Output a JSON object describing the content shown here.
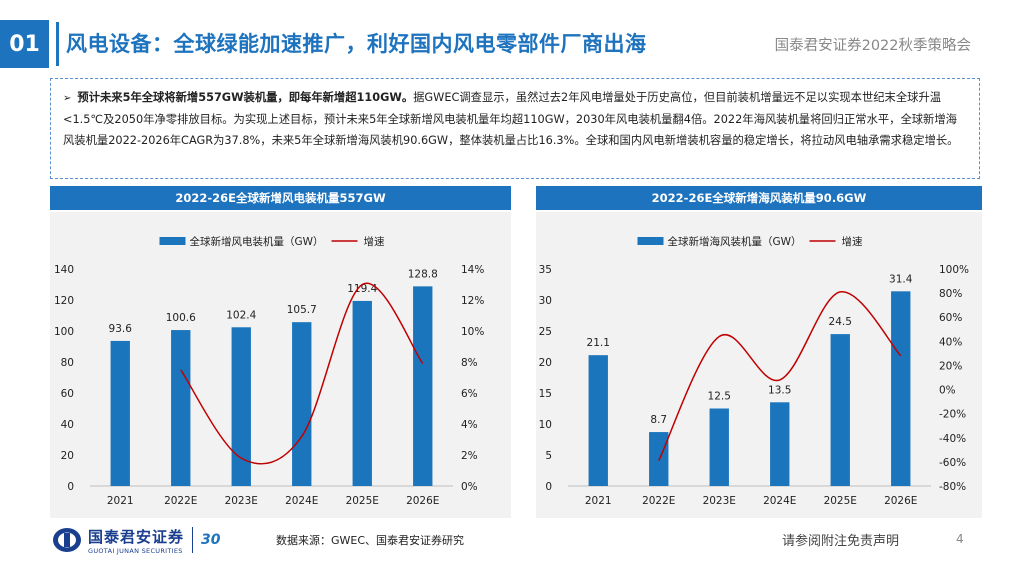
{
  "header": {
    "section_no": "01",
    "title": "风电设备：全球绿能加速推广，利好国内风电零部件厂商出海",
    "subtitle": "国泰君安证券2022秋季策略会"
  },
  "summary": {
    "bullet_bold": "预计未来5年全球将新增557GW装机量，即每年新增超110GW。",
    "bullet_text": "据GWEC调查显示，虽然过去2年风电增量处于历史高位，但目前装机增量远不足以实现本世纪末全球升温<1.5℃及2050年净零排放目标。为实现上述目标，预计未来5年全球新增风电装机量年均超110GW，2030年风电装机量翻4倍。2022年海风装机量将回归正常水平，全球新增海风装机量2022-2026年CAGR为37.8%，未来5年全球新增海风装机90.6GW，整体装机量占比16.3%。全球和国内风电新增装机容量的稳定增长，将拉动风电轴承需求稳定增长。"
  },
  "footer": {
    "logo_cn": "国泰君安证券",
    "logo_en": "GUOTAI JUNAN SECURITIES",
    "anniversary": "30",
    "source": "数据来源：GWEC、国泰君安证券研究",
    "disclaimer": "请参阅附注免责声明",
    "page": "4"
  },
  "colors": {
    "brand": "#1e73be",
    "bar": "#1b75bc",
    "line": "#c00000",
    "panel_bg": "#f2f2f2"
  },
  "chart_data": [
    {
      "type": "bar",
      "title": "2022-26E全球新增风电装机量557GW",
      "categories": [
        "2021",
        "2022E",
        "2023E",
        "2024E",
        "2025E",
        "2026E"
      ],
      "series": [
        {
          "name": "全球新增风电装机量（GW）",
          "kind": "bar",
          "axis": "left",
          "values": [
            93.6,
            100.6,
            102.4,
            105.7,
            119.4,
            128.8
          ],
          "labels": [
            "93.6",
            "100.6",
            "102.4",
            "105.7",
            "119.4",
            "128.8"
          ]
        },
        {
          "name": "增速",
          "kind": "line",
          "axis": "right",
          "values": [
            null,
            7.5,
            1.8,
            3.2,
            13.0,
            7.9
          ]
        }
      ],
      "ylim": [
        0,
        140
      ],
      "yticks": [
        0,
        20,
        40,
        60,
        80,
        100,
        120,
        140
      ],
      "ylim_right": [
        0,
        14
      ],
      "yticks_right": [
        0,
        2,
        4,
        6,
        8,
        10,
        12,
        14
      ],
      "ytick_right_labels": [
        "0%",
        "2%",
        "4%",
        "6%",
        "8%",
        "10%",
        "12%",
        "14%"
      ],
      "legend": "top",
      "grid": false
    },
    {
      "type": "bar",
      "title": "2022-26E全球新增海风装机量90.6GW",
      "categories": [
        "2021",
        "2022E",
        "2023E",
        "2024E",
        "2025E",
        "2026E"
      ],
      "series": [
        {
          "name": "全球新增海风装机量（GW）",
          "kind": "bar",
          "axis": "left",
          "values": [
            21.1,
            8.7,
            12.5,
            13.5,
            24.5,
            31.4
          ],
          "labels": [
            "21.1",
            "8.7",
            "12.5",
            "13.5",
            "24.5",
            "31.4"
          ]
        },
        {
          "name": "增速",
          "kind": "line",
          "axis": "right",
          "values": [
            null,
            -59,
            44,
            8,
            81,
            28
          ]
        }
      ],
      "ylim": [
        0,
        35
      ],
      "yticks": [
        0,
        5,
        10,
        15,
        20,
        25,
        30,
        35
      ],
      "ylim_right": [
        -80,
        100
      ],
      "yticks_right": [
        -80,
        -60,
        -40,
        -20,
        0,
        20,
        40,
        60,
        80,
        100
      ],
      "ytick_right_labels": [
        "-80%",
        "-60%",
        "-40%",
        "-20%",
        "0%",
        "20%",
        "40%",
        "60%",
        "80%",
        "100%"
      ],
      "legend": "top",
      "grid": false
    }
  ]
}
